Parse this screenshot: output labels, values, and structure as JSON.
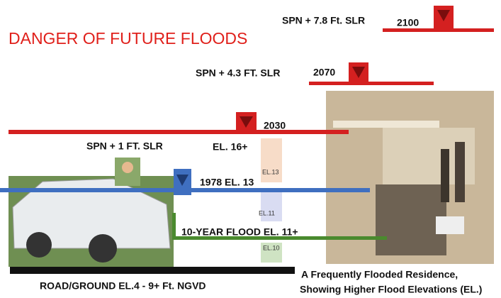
{
  "title": "DANGER OF FUTURE FLOODS",
  "levels": [
    {
      "label": "SPN + 7.8 Ft. SLR",
      "year": "2100"
    },
    {
      "label": "SPN + 4.3 FT. SLR",
      "year": "2070"
    },
    {
      "label": "SPN + 1 FT. SLR",
      "year": "2030",
      "elevation": "EL. 16+"
    },
    {
      "label": "1978  EL. 13"
    },
    {
      "label": "10-YEAR FLOOD  EL. 11+"
    }
  ],
  "boxes": [
    "EL.13",
    "EL.11",
    "EL.10"
  ],
  "ground": "ROAD/GROUND EL.4 - 9+ Ft. NGVD",
  "caption": [
    "A Frequently Flooded Residence,",
    "Showing Higher Flood Elevations (EL.)"
  ]
}
